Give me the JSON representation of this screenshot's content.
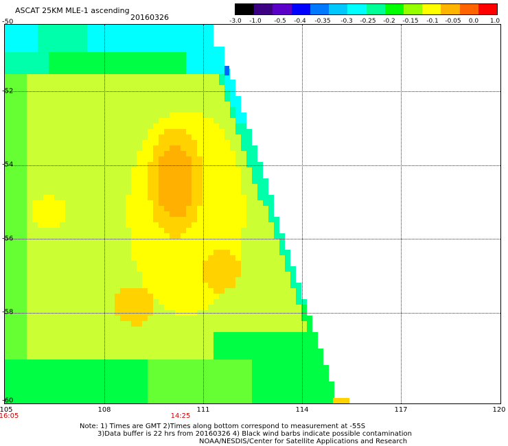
{
  "header": {
    "product_title": "ASCAT 25KM MLE-1 ascending",
    "date": "20160326"
  },
  "colorbar": {
    "colors": [
      "#000000",
      "#3c0082",
      "#5a00c8",
      "#0000ff",
      "#0078ff",
      "#00c8ff",
      "#00ffff",
      "#00ff96",
      "#00ff00",
      "#96ff00",
      "#ffff00",
      "#ffb400",
      "#ff6400",
      "#ff0000"
    ],
    "labels": [
      "-3.0",
      "-1.0",
      "-0.5",
      "-0.4",
      "-0.35",
      "-0.3",
      "-0.25",
      "-0.2",
      "-0.15",
      "-0.1",
      "-0.05",
      "0.0",
      "1.0"
    ]
  },
  "map": {
    "x_ticks": [
      "105",
      "108",
      "111",
      "114",
      "117",
      "120"
    ],
    "y_ticks": [
      "-50",
      "-52",
      "-54",
      "-56",
      "-58",
      "-60"
    ],
    "time_labels": [
      "16:05",
      "14:25"
    ],
    "colors": {
      "cyan": "#00ffff",
      "aqua_green": "#00ffaa",
      "green": "#00ff44",
      "light_green": "#66ff33",
      "yellow_green": "#ccff33",
      "yellow": "#ffff00",
      "orange_yellow": "#ffd200",
      "orange": "#ffb000",
      "blue": "#0064ff"
    }
  },
  "notes": {
    "line1": "Note: 1) Times are GMT 2)Times along bottom correspond to measurement at -55S",
    "line2": "3)Data buffer is 22 hrs from 20160326 4) Black wind barbs indicate possible contamination",
    "line3": "NOAA/NESDIS/Center for Satellite Applications and Research"
  }
}
